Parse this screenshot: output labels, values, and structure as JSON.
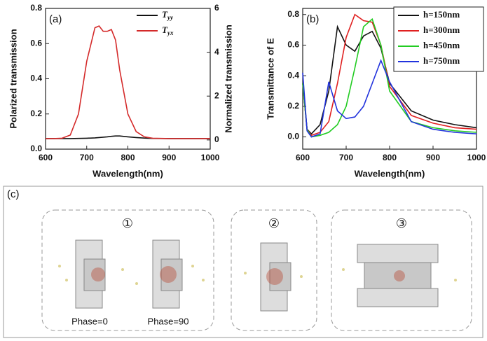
{
  "chart_data": [
    {
      "type": "line",
      "label": "(a)",
      "x_label": "Wavelength(nm)",
      "y_label": "Polarized transmission",
      "y2_label": "Normalized transmission",
      "x": [
        600,
        620,
        640,
        660,
        680,
        700,
        720,
        730,
        740,
        750,
        760,
        770,
        780,
        800,
        820,
        840,
        860,
        900,
        950,
        1000
      ],
      "series": [
        {
          "name": "Tyy",
          "color": "#111111",
          "values": [
            0.06,
            0.06,
            0.06,
            0.06,
            0.061,
            0.062,
            0.064,
            0.066,
            0.068,
            0.07,
            0.073,
            0.075,
            0.075,
            0.07,
            0.066,
            0.063,
            0.061,
            0.06,
            0.06,
            0.06
          ]
        },
        {
          "name": "Tyx",
          "color": "#d42a2a",
          "values": [
            0.06,
            0.06,
            0.062,
            0.08,
            0.2,
            0.5,
            0.69,
            0.7,
            0.67,
            0.67,
            0.68,
            0.62,
            0.45,
            0.2,
            0.1,
            0.07,
            0.062,
            0.06,
            0.06,
            0.06
          ]
        }
      ],
      "xlim": [
        600,
        1000
      ],
      "xticks": [
        600,
        700,
        800,
        900,
        1000
      ],
      "ylim": [
        0,
        0.8
      ],
      "yticks": [
        {
          "value": 0,
          "label": "0.0"
        },
        0.2,
        0.4,
        0.6,
        0.8
      ],
      "y2lim": [
        -0.42,
        6
      ],
      "y2ticks": [
        0,
        2,
        4,
        6
      ]
    },
    {
      "type": "line",
      "label": "(b)",
      "x_label": "Wavelength(nm)",
      "y_label": "Transmittance of E",
      "x": [
        600,
        610,
        620,
        640,
        660,
        680,
        700,
        720,
        740,
        760,
        780,
        800,
        850,
        900,
        950,
        1000
      ],
      "series": [
        {
          "name": "h=150nm",
          "color": "#111111",
          "values": [
            0.35,
            0.05,
            0.02,
            0.08,
            0.3,
            0.72,
            0.6,
            0.56,
            0.66,
            0.69,
            0.58,
            0.35,
            0.17,
            0.11,
            0.08,
            0.06
          ]
        },
        {
          "name": "h=300nm",
          "color": "#e02020",
          "values": [
            0.35,
            0.05,
            0.01,
            0.03,
            0.1,
            0.35,
            0.65,
            0.8,
            0.76,
            0.75,
            0.6,
            0.33,
            0.14,
            0.09,
            0.06,
            0.05
          ]
        },
        {
          "name": "h=450nm",
          "color": "#22cc22",
          "values": [
            0.35,
            0.05,
            0.0,
            0.01,
            0.03,
            0.08,
            0.2,
            0.45,
            0.72,
            0.77,
            0.6,
            0.3,
            0.1,
            0.06,
            0.04,
            0.03
          ]
        },
        {
          "name": "h=750nm",
          "color": "#2233dd",
          "values": [
            0.42,
            0.04,
            0.0,
            0.02,
            0.36,
            0.17,
            0.12,
            0.13,
            0.2,
            0.35,
            0.5,
            0.36,
            0.1,
            0.05,
            0.03,
            0.02
          ]
        }
      ],
      "xlim": [
        600,
        1000
      ],
      "xticks": [
        600,
        700,
        800,
        900,
        1000
      ],
      "ylim": [
        -0.08,
        0.84
      ],
      "yticks": [
        {
          "value": 0,
          "label": "0.0"
        },
        0.2,
        0.4,
        0.6,
        0.8
      ]
    }
  ],
  "diagram": {
    "label": "(c)",
    "panels": [
      {
        "label": "①",
        "captions": [
          "Phase=0",
          "Phase=90"
        ]
      },
      {
        "label": "②"
      },
      {
        "label": "③"
      }
    ]
  }
}
